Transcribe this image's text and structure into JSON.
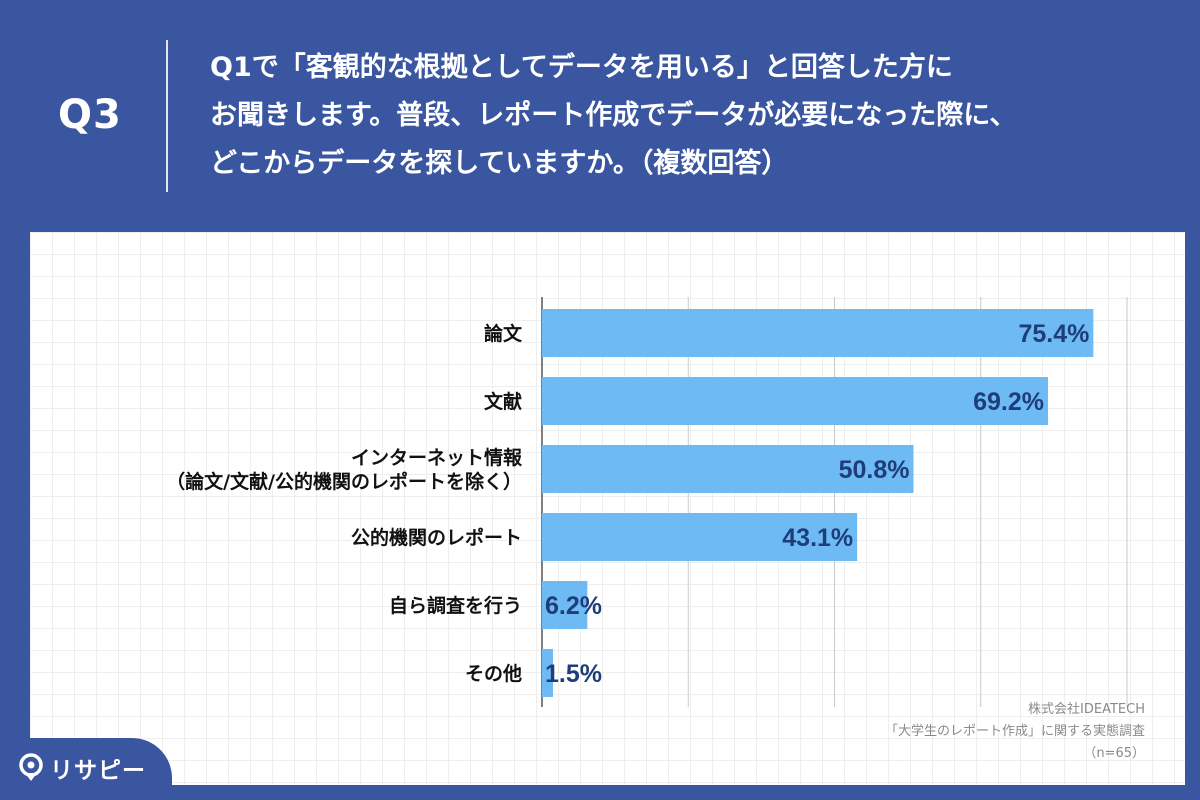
{
  "header": {
    "q_number": "Q3",
    "question_lines": [
      "Q1で「客観的な根拠としてデータを用いる」と回答した方に",
      "お聞きします。普段、レポート作成でデータが必要になった際に、",
      "どこからデータを探していますか。（複数回答）"
    ]
  },
  "chart_data": {
    "type": "bar",
    "orientation": "horizontal",
    "categories": [
      [
        "論文"
      ],
      [
        "文献"
      ],
      [
        "インターネット情報",
        "（論文/文献/公的機関のレポートを除く）"
      ],
      [
        "公的機関のレポート"
      ],
      [
        "自ら調査を行う"
      ],
      [
        "その他"
      ]
    ],
    "values": [
      75.4,
      69.2,
      50.8,
      43.1,
      6.2,
      1.5
    ],
    "value_labels": [
      "75.4%",
      "69.2%",
      "50.8%",
      "43.1%",
      "6.2%",
      "1.5%"
    ],
    "xlim": [
      0,
      80
    ],
    "gridlines_at": [
      0,
      20,
      40,
      60,
      80
    ],
    "bar_color": "#6dbaf5",
    "value_label_color": "#1f3d78"
  },
  "source": {
    "company": "株式会社IDEATECH",
    "survey": "「大学生のレポート作成」に関する実態調査",
    "sample": "（n=65）"
  },
  "logo": {
    "text": "リサピー"
  },
  "colors": {
    "background": "#3b56a1",
    "panel": "#ffffff"
  }
}
